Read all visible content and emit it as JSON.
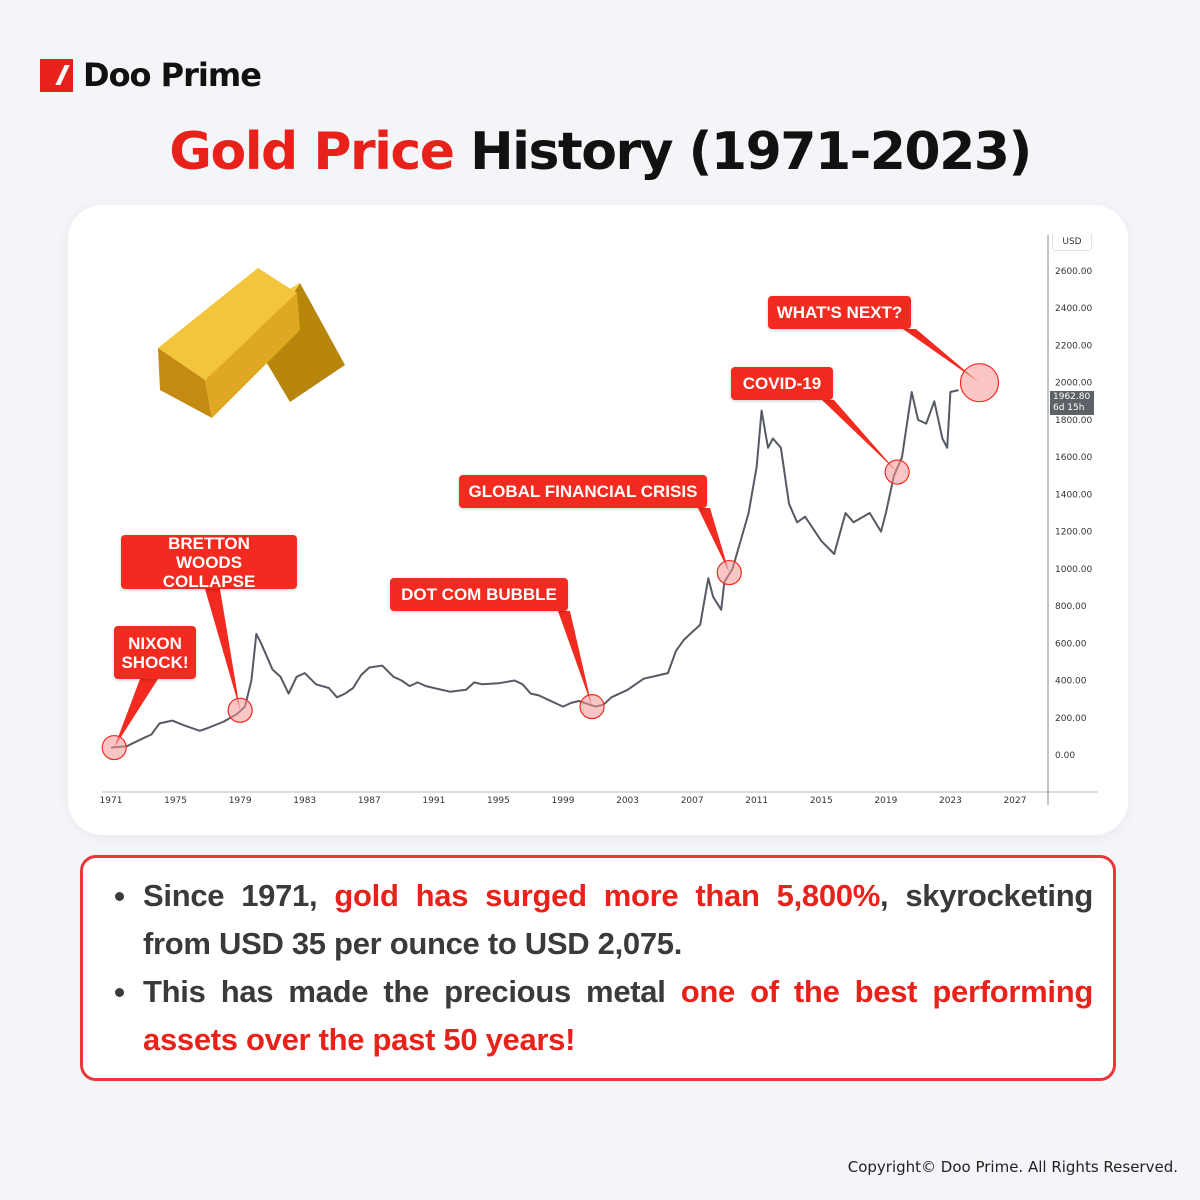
{
  "brand": {
    "name": "Doo Prime",
    "color": "#e8221b"
  },
  "title": {
    "highlight": "Gold Price",
    "rest": "History (1971-2023)"
  },
  "chart_data": {
    "type": "line",
    "ylabel": "USD",
    "ylim": [
      0,
      2600
    ],
    "yticks": [
      "0.00",
      "200.00",
      "400.00",
      "600.00",
      "800.00",
      "1000.00",
      "1200.00",
      "1400.00",
      "1600.00",
      "1800.00",
      "2000.00",
      "2200.00",
      "2400.00",
      "2600.00"
    ],
    "xlim": [
      1971,
      2027
    ],
    "xticks": [
      "1971",
      "1975",
      "1979",
      "1983",
      "1987",
      "1991",
      "1995",
      "1999",
      "2003",
      "2007",
      "2011",
      "2015",
      "2019",
      "2023",
      "2027"
    ],
    "current_price": "1962.80",
    "current_countdown": "6d 15h",
    "line_color": "#555a63",
    "x": [
      1971,
      1972,
      1973,
      1973.5,
      1974,
      1974.8,
      1975.5,
      1976.5,
      1977,
      1978,
      1978.8,
      1979.3,
      1979.7,
      1980,
      1980.3,
      1980.7,
      1981,
      1981.5,
      1982,
      1982.5,
      1983,
      1983.7,
      1984.5,
      1985,
      1985.5,
      1986,
      1986.5,
      1987,
      1987.8,
      1988.5,
      1989,
      1989.5,
      1990,
      1990.5,
      1991,
      1992,
      1993,
      1993.5,
      1994,
      1995,
      1996,
      1996.5,
      1997,
      1997.5,
      1998,
      1999,
      1999.5,
      2000,
      2001,
      2001.5,
      2002,
      2003,
      2004,
      2005,
      2005.5,
      2006,
      2006.5,
      2007,
      2007.5,
      2008,
      2008.3,
      2008.8,
      2009,
      2009.5,
      2010,
      2010.5,
      2011,
      2011.3,
      2011.7,
      2012,
      2012.5,
      2013,
      2013.5,
      2014,
      2015,
      2015.8,
      2016.5,
      2017,
      2018,
      2018.7,
      2019,
      2019.5,
      2020,
      2020.6,
      2021,
      2021.5,
      2022,
      2022.5,
      2022.8,
      2023,
      2023.5
    ],
    "y": [
      40,
      48,
      90,
      110,
      170,
      185,
      160,
      130,
      145,
      180,
      220,
      260,
      400,
      650,
      600,
      520,
      460,
      420,
      330,
      420,
      440,
      380,
      360,
      310,
      330,
      360,
      430,
      470,
      480,
      420,
      400,
      370,
      390,
      370,
      360,
      340,
      350,
      390,
      380,
      385,
      400,
      380,
      330,
      320,
      300,
      260,
      280,
      290,
      260,
      270,
      310,
      350,
      410,
      430,
      440,
      560,
      620,
      660,
      700,
      950,
      850,
      780,
      930,
      1000,
      1150,
      1300,
      1550,
      1850,
      1650,
      1700,
      1650,
      1350,
      1250,
      1280,
      1150,
      1080,
      1300,
      1250,
      1300,
      1200,
      1300,
      1500,
      1600,
      1950,
      1800,
      1780,
      1900,
      1700,
      1650,
      1950,
      1960
    ]
  },
  "annotations": [
    {
      "label": "NIXON SHOCK!",
      "x": 1971.2,
      "y": 40
    },
    {
      "label": "BRETTON WOODS COLLAPSE",
      "x": 1979,
      "y": 240
    },
    {
      "label": "DOT COM BUBBLE",
      "x": 2000.8,
      "y": 260
    },
    {
      "label": "GLOBAL FINANCIAL CRISIS",
      "x": 2009.3,
      "y": 980
    },
    {
      "label": "COVID-19",
      "x": 2019.7,
      "y": 1520
    },
    {
      "label": "WHAT'S NEXT?",
      "x": 2024.8,
      "y": 2000
    }
  ],
  "summary": {
    "b1_a": "Since 1971, ",
    "b1_red": "gold has surged more than 5,800%",
    "b1_b": ", skyrocketing from USD 35 per ounce to USD 2,075.",
    "b2_a": "This has made the precious metal ",
    "b2_red": "one of the best performing assets over the past 50 years!"
  },
  "copyright": "Copyright© Doo Prime. All Rights Reserved."
}
